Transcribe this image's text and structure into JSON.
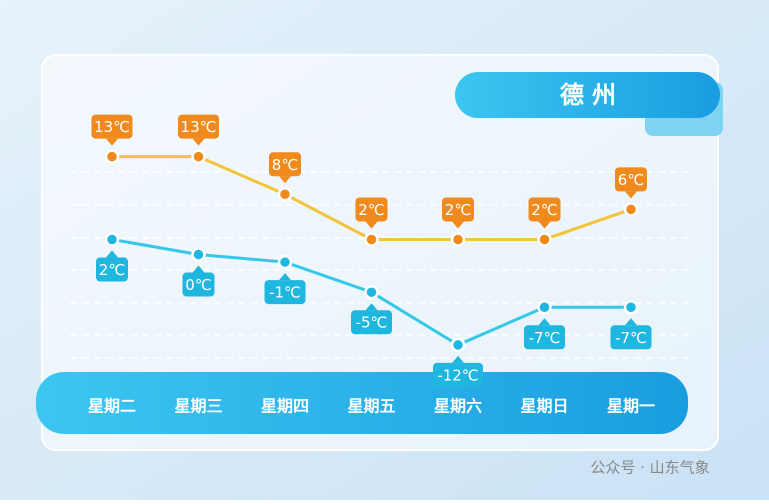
{
  "watermark": "公众号 · 山东气象",
  "chart_data": {
    "type": "line",
    "title": "德州",
    "categories": [
      "星期二",
      "星期三",
      "星期四",
      "星期五",
      "星期六",
      "星期日",
      "星期一"
    ],
    "series": [
      {
        "color": "#f3c43a",
        "label_color": "#f08a1c",
        "label_side": "above",
        "values": [
          13,
          13,
          8,
          2,
          2,
          2,
          6
        ],
        "value_labels": [
          "13℃",
          "13℃",
          "8℃",
          "2℃",
          "2℃",
          "2℃",
          "6℃"
        ]
      },
      {
        "color": "#35c8e6",
        "label_color": "#1fb6e0",
        "label_side": "below",
        "values": [
          2,
          0,
          -1,
          -5,
          -12,
          -7,
          -7
        ],
        "value_labels": [
          "2℃",
          "0℃",
          "-1℃",
          "-5℃",
          "-12℃",
          "-7℃",
          "-7℃"
        ]
      }
    ],
    "ylim": [
      -14,
      16
    ]
  }
}
